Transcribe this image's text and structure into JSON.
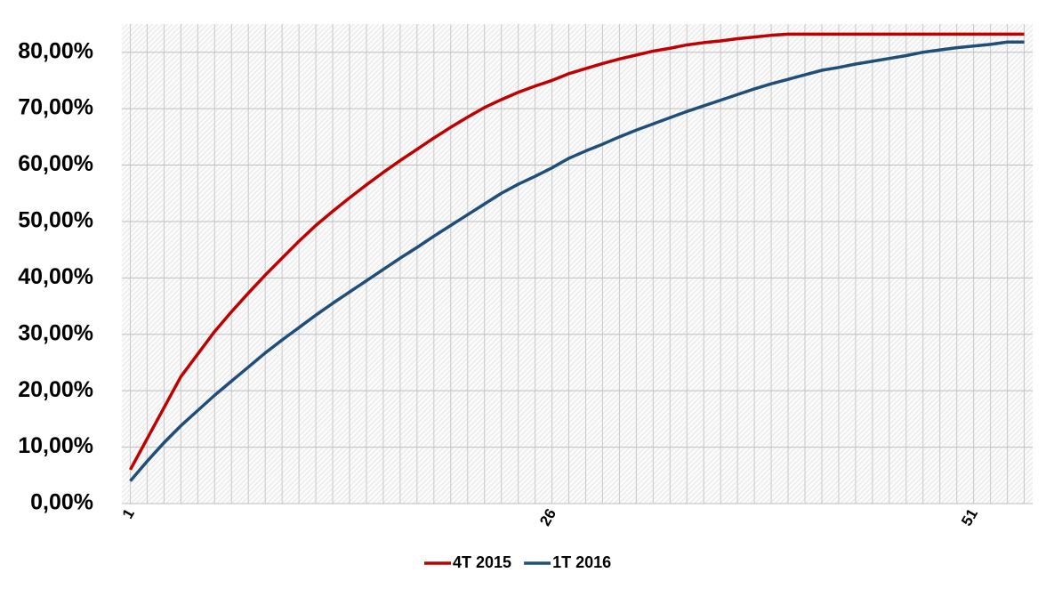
{
  "chart_data": {
    "type": "line",
    "x": [
      1,
      2,
      3,
      4,
      5,
      6,
      7,
      8,
      9,
      10,
      11,
      12,
      13,
      14,
      15,
      16,
      17,
      18,
      19,
      20,
      21,
      22,
      23,
      24,
      25,
      26,
      27,
      28,
      29,
      30,
      31,
      32,
      33,
      34,
      35,
      36,
      37,
      38,
      39,
      40,
      41,
      42,
      43,
      44,
      45,
      46,
      47,
      48,
      49,
      50,
      51,
      52,
      53,
      54
    ],
    "series": [
      {
        "name": "4T 2015",
        "color": "#c00000",
        "values": [
          6,
          11.5,
          17,
          22.5,
          26.5,
          30.5,
          34,
          37.3,
          40.5,
          43.5,
          46.5,
          49.3,
          51.8,
          54.2,
          56.5,
          58.7,
          60.8,
          62.8,
          64.8,
          66.7,
          68.5,
          70.2,
          71.6,
          72.9,
          74,
          75,
          76.2,
          77.1,
          78,
          78.8,
          79.5,
          80.2,
          80.7,
          81.3,
          81.7,
          82,
          82.4,
          82.7,
          83,
          83.2,
          83.2,
          83.2,
          83.2,
          83.2,
          83.2,
          83.2,
          83.2,
          83.2,
          83.2,
          83.2,
          83.2,
          83.2,
          83.2,
          83.2
        ]
      },
      {
        "name": "1T 2016",
        "color": "#1f4e79",
        "values": [
          4,
          7.5,
          10.8,
          13.8,
          16.5,
          19.2,
          21.7,
          24.2,
          26.7,
          29,
          31.2,
          33.4,
          35.5,
          37.5,
          39.5,
          41.5,
          43.5,
          45.4,
          47.4,
          49.3,
          51.2,
          53.1,
          55,
          56.6,
          58,
          59.5,
          61.2,
          62.5,
          63.7,
          65,
          66.2,
          67.3,
          68.4,
          69.5,
          70.5,
          71.5,
          72.5,
          73.5,
          74.4,
          75.2,
          76,
          76.8,
          77.3,
          77.9,
          78.4,
          78.9,
          79.4,
          80,
          80.4,
          80.8,
          81.1,
          81.4,
          81.8,
          81.8
        ]
      }
    ],
    "xlim": [
      0.5,
      54.5
    ],
    "xticks": [
      1,
      26,
      51
    ],
    "ylim": [
      0,
      85
    ],
    "yticks": [
      {
        "value": 0,
        "label": "0,00%"
      },
      {
        "value": 10,
        "label": "10,00%"
      },
      {
        "value": 20,
        "label": "20,00%"
      },
      {
        "value": 30,
        "label": "30,00%"
      },
      {
        "value": 40,
        "label": "40,00%"
      },
      {
        "value": 50,
        "label": "50,00%"
      },
      {
        "value": 60,
        "label": "60,00%"
      },
      {
        "value": 70,
        "label": "70,00%"
      },
      {
        "value": 80,
        "label": "80,00%"
      }
    ],
    "grid": true,
    "legend": "bottom"
  }
}
